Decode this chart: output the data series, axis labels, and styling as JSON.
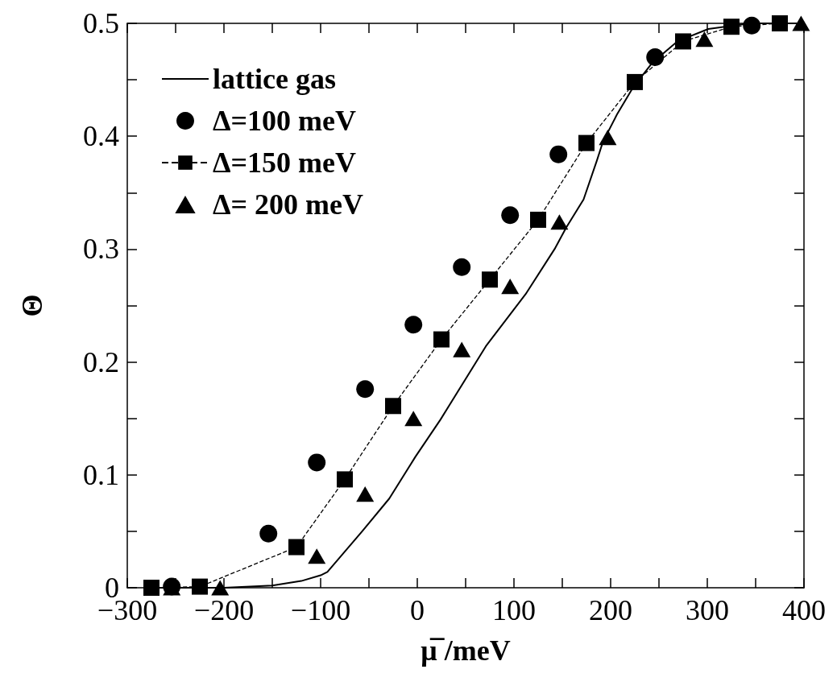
{
  "chart_data": {
    "type": "scatter",
    "xlabel": "μ̅ /meV",
    "ylabel": "Θ",
    "xlim": [
      -300,
      400
    ],
    "ylim": [
      0,
      0.5
    ],
    "xticks": [
      {
        "value": -300,
        "label": "−300"
      },
      {
        "value": -250,
        "label": null
      },
      {
        "value": -200,
        "label": "−200"
      },
      {
        "value": -150,
        "label": null
      },
      {
        "value": -100,
        "label": "−100"
      },
      {
        "value": -50,
        "label": null
      },
      0,
      {
        "value": 50,
        "label": null
      },
      100,
      {
        "value": 150,
        "label": null
      },
      200,
      {
        "value": 250,
        "label": null
      },
      300,
      {
        "value": 350,
        "label": null
      },
      400
    ],
    "yticks": [
      0,
      {
        "value": 0.05,
        "label": null
      },
      0.1,
      {
        "value": 0.15,
        "label": null
      },
      0.2,
      {
        "value": 0.25,
        "label": null
      },
      0.3,
      {
        "value": 0.35,
        "label": null
      },
      0.4,
      {
        "value": 0.45,
        "label": null
      },
      0.5
    ],
    "grid": false,
    "legend": "top left",
    "series": [
      {
        "name": "lattice gas",
        "type": "line",
        "marker": "none",
        "line_style": "solid",
        "color": "#000000",
        "x": [
          -275,
          -200,
          -150,
          -120,
          -100,
          -93,
          -80,
          -57,
          -29,
          -2,
          24,
          71,
          112,
          142,
          154,
          172,
          186,
          192,
          207,
          223,
          243,
          269,
          301,
          344,
          398
        ],
        "values": [
          0,
          0,
          0.002,
          0.006,
          0.011,
          0.014,
          0.027,
          0.05,
          0.079,
          0.116,
          0.149,
          0.214,
          0.26,
          0.3,
          0.319,
          0.344,
          0.379,
          0.395,
          0.42,
          0.443,
          0.465,
          0.484,
          0.495,
          0.5,
          0.5
        ]
      },
      {
        "name": "Δ=100 meV",
        "marker": "circle",
        "color": "#000000",
        "x": [
          -254,
          -154,
          -104,
          -54,
          -4,
          46,
          96,
          146,
          246,
          346
        ],
        "values": [
          0.001,
          0.048,
          0.111,
          0.176,
          0.233,
          0.284,
          0.33,
          0.384,
          0.47,
          0.498
        ]
      },
      {
        "name": "Δ=150 meV",
        "type": "line",
        "marker": "square",
        "line_style": "dashed",
        "color": "#000000",
        "x": [
          -275,
          -225,
          -125,
          -75,
          -25,
          25,
          75,
          125,
          175,
          225,
          275,
          325,
          375
        ],
        "values": [
          0,
          0.001,
          0.036,
          0.096,
          0.161,
          0.22,
          0.273,
          0.326,
          0.394,
          0.448,
          0.484,
          0.497,
          0.5
        ]
      },
      {
        "name": "Δ= 200 meV",
        "marker": "triangle",
        "color": "#000000",
        "x": [
          -254,
          -204,
          -104,
          -54,
          -4,
          46,
          96,
          147,
          197,
          297,
          397
        ],
        "values": [
          0,
          0,
          0.028,
          0.083,
          0.15,
          0.211,
          0.267,
          0.324,
          0.399,
          0.486,
          0.5
        ]
      }
    ]
  }
}
